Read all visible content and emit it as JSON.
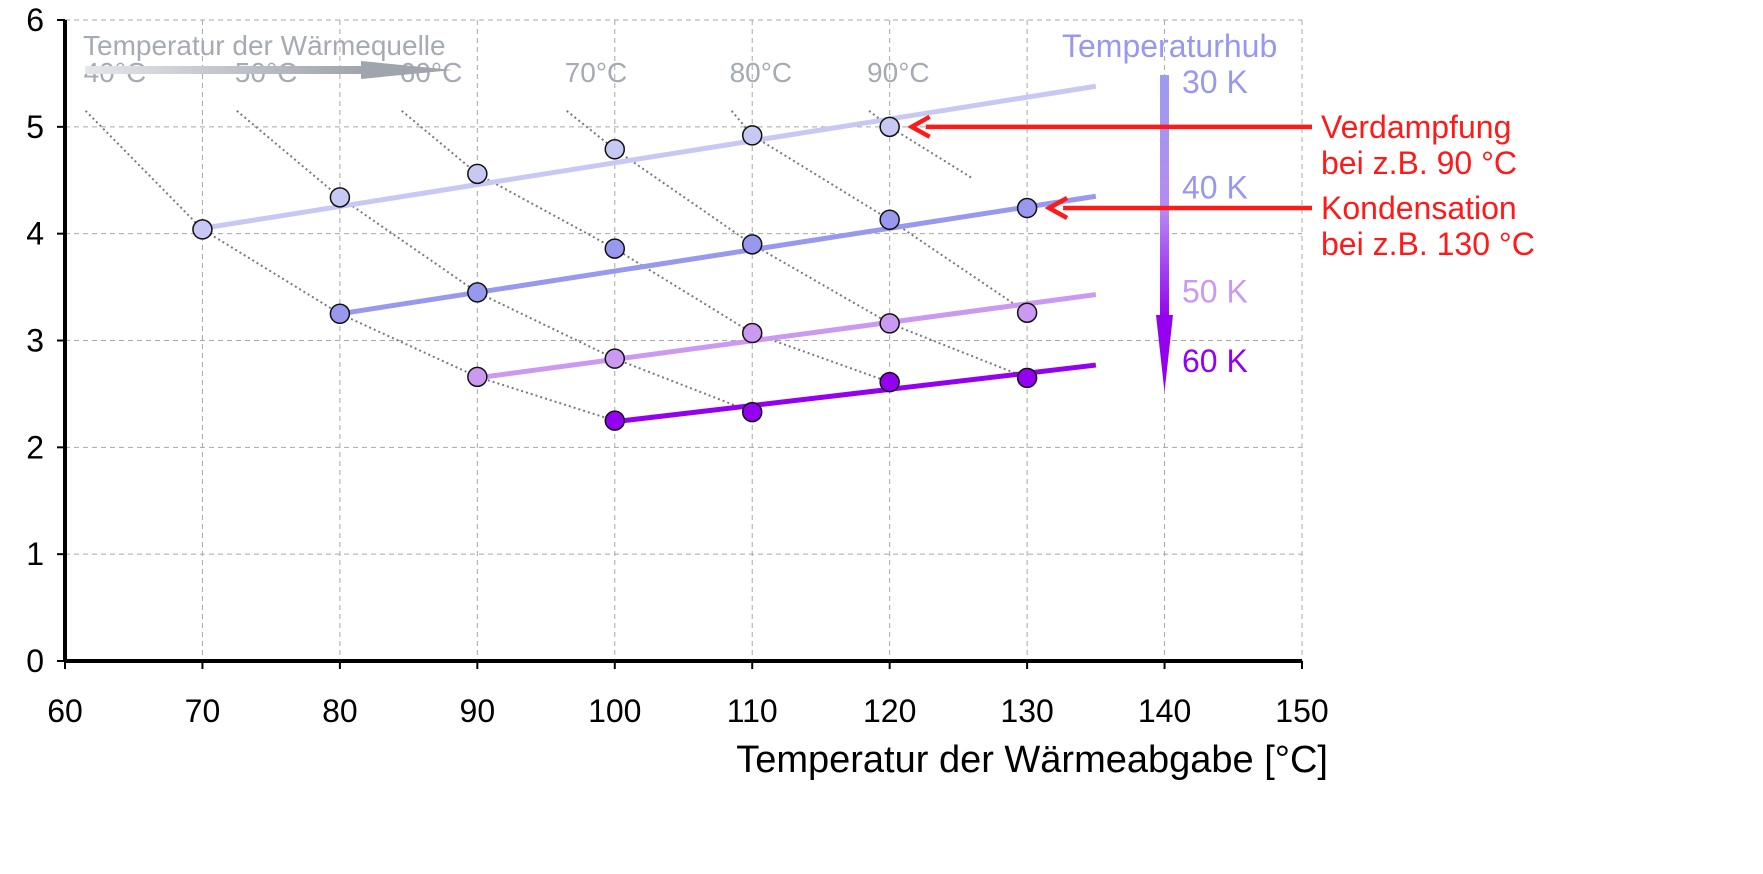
{
  "chart_data": {
    "type": "line",
    "title": "",
    "xlabel": "Temperatur der Wärmeabgabe [°C]",
    "ylabel": "",
    "xlim": [
      60,
      150
    ],
    "ylim": [
      0,
      6
    ],
    "x_ticks": [
      60,
      70,
      80,
      90,
      100,
      110,
      120,
      130,
      140,
      150
    ],
    "y_ticks": [
      0,
      1,
      2,
      3,
      4,
      5,
      6
    ],
    "grid": true,
    "series": [
      {
        "name": "30 K",
        "color": "#c8c8f5",
        "fit": [
          [
            70,
            4.05
          ],
          [
            135,
            5.38
          ]
        ],
        "points": [
          [
            70,
            4.04
          ],
          [
            80,
            4.34
          ],
          [
            90,
            4.56
          ],
          [
            100,
            4.79
          ],
          [
            110,
            4.92
          ],
          [
            120,
            5.0
          ]
        ]
      },
      {
        "name": "40 K",
        "color": "#9898ee",
        "fit": [
          [
            80,
            3.25
          ],
          [
            135,
            4.35
          ]
        ],
        "points": [
          [
            80,
            3.25
          ],
          [
            90,
            3.45
          ],
          [
            100,
            3.86
          ],
          [
            110,
            3.9
          ],
          [
            120,
            4.13
          ],
          [
            130,
            4.24
          ]
        ]
      },
      {
        "name": "50 K",
        "color": "#cc99f2",
        "fit": [
          [
            90,
            2.65
          ],
          [
            135,
            3.43
          ]
        ],
        "points": [
          [
            90,
            2.66
          ],
          [
            100,
            2.83
          ],
          [
            110,
            3.07
          ],
          [
            120,
            3.16
          ],
          [
            130,
            3.26
          ]
        ]
      },
      {
        "name": "60 K",
        "color": "#9400f0",
        "fit": [
          [
            100,
            2.24
          ],
          [
            135,
            2.77
          ]
        ],
        "points": [
          [
            100,
            2.25
          ],
          [
            110,
            2.33
          ],
          [
            120,
            2.61
          ],
          [
            130,
            2.65
          ]
        ]
      }
    ],
    "source_isolines": [
      {
        "label": "40°C",
        "points": [
          [
            61.5,
            5.15
          ],
          [
            70,
            4.04
          ],
          [
            80,
            3.25
          ],
          [
            90,
            2.66
          ],
          [
            100,
            2.25
          ]
        ]
      },
      {
        "label": "50°C",
        "points": [
          [
            72.5,
            5.15
          ],
          [
            80,
            4.34
          ],
          [
            90,
            3.45
          ],
          [
            100,
            2.83
          ],
          [
            110,
            2.33
          ]
        ]
      },
      {
        "label": "60°C",
        "points": [
          [
            84.5,
            5.15
          ],
          [
            90,
            4.56
          ],
          [
            100,
            3.86
          ],
          [
            110,
            3.07
          ],
          [
            120,
            2.61
          ]
        ]
      },
      {
        "label": "70°C",
        "points": [
          [
            96.5,
            5.15
          ],
          [
            100,
            4.79
          ],
          [
            110,
            3.9
          ],
          [
            120,
            3.16
          ],
          [
            130,
            2.65
          ]
        ]
      },
      {
        "label": "80°C",
        "points": [
          [
            108.5,
            5.15
          ],
          [
            110,
            4.92
          ],
          [
            120,
            4.13
          ],
          [
            130,
            3.26
          ]
        ]
      },
      {
        "label": "90°C",
        "points": [
          [
            118.5,
            5.15
          ],
          [
            120,
            5.0
          ],
          [
            126,
            4.52
          ]
        ]
      }
    ],
    "source_arrow_label": "Temperatur der Wärmequelle",
    "lift_title": "Temperaturhub",
    "lift_labels": [
      {
        "text": "30 K",
        "y": 5.42,
        "color": "#9898ee"
      },
      {
        "text": "40 K",
        "y": 4.43,
        "color": "#9898ee"
      },
      {
        "text": "50 K",
        "y": 3.46,
        "color": "#cc99f2"
      },
      {
        "text": "60 K",
        "y": 2.81,
        "color": "#9400f0"
      }
    ],
    "callouts": [
      {
        "lines": [
          "Verdampfung",
          "bei z.B. 90 °C"
        ],
        "target": [
          120,
          5.0
        ],
        "color": "#ff1a1a"
      },
      {
        "lines": [
          "Kondensation",
          "bei  z.B. 130 °C"
        ],
        "target": [
          130,
          4.24
        ],
        "color": "#ff1a1a"
      }
    ]
  }
}
